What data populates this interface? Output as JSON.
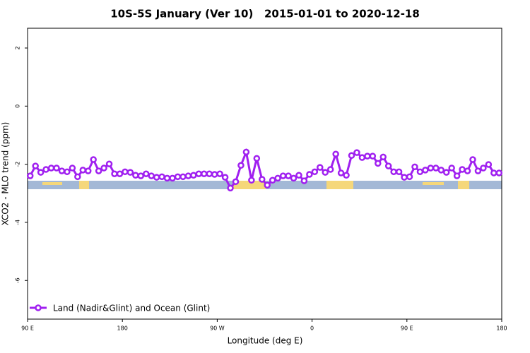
{
  "chart_data": {
    "type": "line",
    "title": "10S-5S January (Ver 10)   2015-01-01 to 2020-12-18",
    "x_label": "Longitude (deg E)",
    "y_label": "XCO2 - MLO trend (ppm)",
    "legend": "bottom-left",
    "xlim": [
      90,
      540
    ],
    "ylim": [
      -7.33,
      2.68
    ],
    "xticks": [
      {
        "value": 90,
        "label": "90 E"
      },
      180,
      {
        "value": 270,
        "label": "90 W"
      },
      {
        "value": 360,
        "label": "0"
      },
      {
        "value": 450,
        "label": "90 E"
      },
      {
        "value": 540,
        "label": "180"
      }
    ],
    "yticks": [
      2,
      0,
      -2,
      -4,
      -6
    ],
    "x": [
      92.5,
      97.5,
      102.5,
      107.5,
      112.5,
      117.5,
      122.5,
      127.5,
      132.5,
      137.5,
      142.5,
      147.5,
      152.5,
      157.5,
      162.5,
      167.5,
      172.5,
      177.5,
      182.5,
      187.5,
      192.5,
      197.5,
      202.5,
      207.5,
      212.5,
      217.5,
      222.5,
      227.5,
      232.5,
      237.5,
      242.5,
      247.5,
      252.5,
      257.5,
      262.5,
      267.5,
      272.5,
      277.5,
      282.5,
      287.5,
      292.5,
      297.5,
      302.5,
      307.5,
      312.5,
      317.5,
      322.5,
      327.5,
      332.5,
      337.5,
      342.5,
      347.5,
      352.5,
      357.5,
      362.5,
      367.5,
      372.5,
      377.5,
      382.5,
      387.5,
      392.5,
      397.5,
      402.5,
      407.5,
      412.5,
      417.5,
      422.5,
      427.5,
      432.5,
      437.5,
      442.5,
      447.5,
      452.5,
      457.5,
      462.5,
      467.5,
      472.5,
      477.5,
      482.5,
      487.5,
      492.5,
      497.5,
      502.5,
      507.5,
      512.5,
      517.5,
      522.5,
      527.5,
      532.5,
      537.5
    ],
    "series": [
      {
        "name": "Land (Nadir&Glint) and Ocean (Glint)",
        "color": "#a020f0",
        "values": [
          -2.4,
          -2.06,
          -2.28,
          -2.18,
          -2.13,
          -2.13,
          -2.23,
          -2.26,
          -2.13,
          -2.43,
          -2.2,
          -2.23,
          -1.84,
          -2.23,
          -2.13,
          -1.99,
          -2.33,
          -2.33,
          -2.26,
          -2.28,
          -2.38,
          -2.4,
          -2.33,
          -2.4,
          -2.45,
          -2.43,
          -2.48,
          -2.48,
          -2.43,
          -2.43,
          -2.4,
          -2.38,
          -2.33,
          -2.33,
          -2.33,
          -2.35,
          -2.33,
          -2.45,
          -2.82,
          -2.6,
          -2.04,
          -1.58,
          -2.55,
          -1.8,
          -2.52,
          -2.72,
          -2.55,
          -2.48,
          -2.4,
          -2.4,
          -2.48,
          -2.38,
          -2.57,
          -2.35,
          -2.26,
          -2.11,
          -2.28,
          -2.18,
          -1.65,
          -2.3,
          -2.38,
          -1.7,
          -1.6,
          -1.77,
          -1.72,
          -1.72,
          -1.97,
          -1.75,
          -2.06,
          -2.26,
          -2.26,
          -2.45,
          -2.43,
          -2.09,
          -2.26,
          -2.2,
          -2.13,
          -2.13,
          -2.2,
          -2.28,
          -2.13,
          -2.4,
          -2.18,
          -2.23,
          -1.84,
          -2.23,
          -2.13,
          -2.01,
          -2.3,
          -2.3
        ]
      }
    ]
  }
}
